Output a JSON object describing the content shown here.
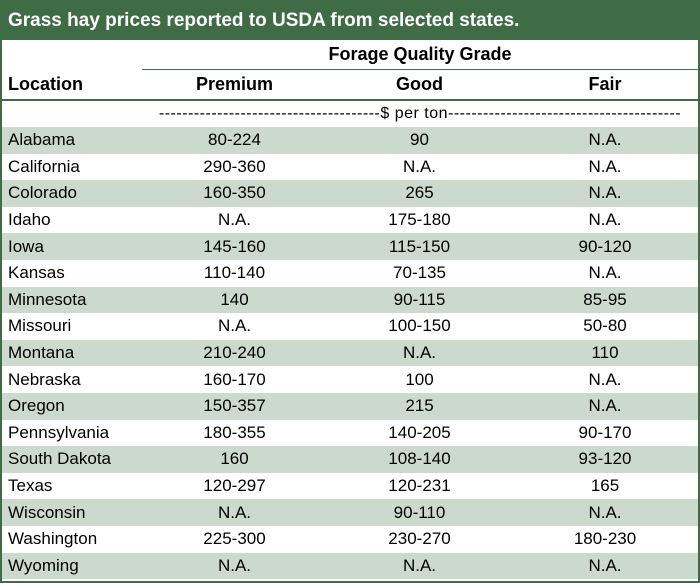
{
  "title": "Grass hay prices reported to USDA from selected states.",
  "header": {
    "group_label": "Forage Quality Grade",
    "location_label": "Location",
    "columns": [
      "Premium",
      "Good",
      "Fair"
    ],
    "unit_line": "--------------------------------------$ per ton----------------------------------------"
  },
  "rows": [
    {
      "location": "Alabama",
      "premium": "80-224",
      "good": "90",
      "fair": "N.A."
    },
    {
      "location": "California",
      "premium": "290-360",
      "good": "N.A.",
      "fair": "N.A."
    },
    {
      "location": "Colorado",
      "premium": "160-350",
      "good": "265",
      "fair": "N.A."
    },
    {
      "location": "Idaho",
      "premium": "N.A.",
      "good": "175-180",
      "fair": "N.A."
    },
    {
      "location": "Iowa",
      "premium": "145-160",
      "good": "115-150",
      "fair": "90-120"
    },
    {
      "location": "Kansas",
      "premium": "110-140",
      "good": "70-135",
      "fair": "N.A."
    },
    {
      "location": "Minnesota",
      "premium": "140",
      "good": "90-115",
      "fair": "85-95"
    },
    {
      "location": "Missouri",
      "premium": "N.A.",
      "good": "100-150",
      "fair": "50-80"
    },
    {
      "location": "Montana",
      "premium": "210-240",
      "good": "N.A.",
      "fair": "110"
    },
    {
      "location": "Nebraska",
      "premium": "160-170",
      "good": "100",
      "fair": "N.A."
    },
    {
      "location": "Oregon",
      "premium": "150-357",
      "good": "215",
      "fair": "N.A."
    },
    {
      "location": "Pennsylvania",
      "premium": "180-355",
      "good": "140-205",
      "fair": "90-170"
    },
    {
      "location": "South Dakota",
      "premium": "160",
      "good": "108-140",
      "fair": "93-120"
    },
    {
      "location": "Texas",
      "premium": "120-297",
      "good": "120-231",
      "fair": "165"
    },
    {
      "location": "Wisconsin",
      "premium": "N.A.",
      "good": "90-110",
      "fair": "N.A."
    },
    {
      "location": "Washington",
      "premium": "225-300",
      "good": "230-270",
      "fair": "180-230"
    },
    {
      "location": "Wyoming",
      "premium": "N.A.",
      "good": "N.A.",
      "fair": "N.A."
    }
  ],
  "colors": {
    "header_green": "#3f6b45",
    "row_shade": "#ccd9cd"
  }
}
